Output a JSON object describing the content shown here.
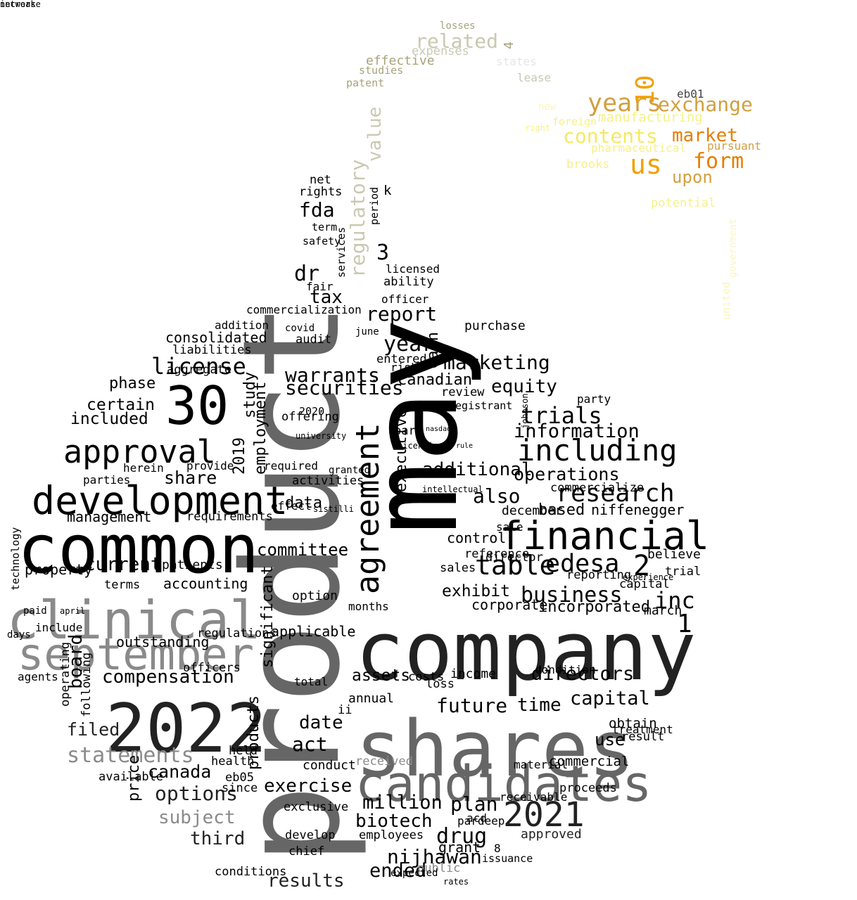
{
  "words": [
    {
      "t": "may",
      "c": "f1"
    },
    {
      "t": "product",
      "c": "f4"
    },
    {
      "t": "company",
      "c": "f2"
    },
    {
      "t": "shares",
      "c": "f4"
    },
    {
      "t": "common",
      "c": "f1"
    },
    {
      "t": "clinical",
      "c": "f5"
    },
    {
      "t": "september",
      "c": "f5"
    },
    {
      "t": "2022",
      "c": "f2"
    },
    {
      "t": "candidates",
      "c": "f4"
    },
    {
      "t": "development",
      "c": "f1"
    },
    {
      "t": "financial",
      "c": "f1"
    },
    {
      "t": "agreement",
      "c": "f1"
    },
    {
      "t": "30",
      "c": "f1"
    },
    {
      "t": "approval",
      "c": "f1"
    },
    {
      "t": "2021",
      "c": "f2"
    },
    {
      "t": "including",
      "c": "f1"
    },
    {
      "t": "years",
      "c": "o3"
    },
    {
      "t": "exchange",
      "c": "o3"
    },
    {
      "t": "us",
      "c": "o2"
    },
    {
      "t": "form",
      "c": "o1"
    },
    {
      "t": "market",
      "c": "o1"
    },
    {
      "t": "contents",
      "c": "y1"
    },
    {
      "t": "10",
      "c": "o2"
    },
    {
      "t": "related",
      "c": "b2"
    },
    {
      "t": "regulatory",
      "c": "b2"
    },
    {
      "t": "value",
      "c": "b2"
    },
    {
      "t": "effective",
      "c": "b1"
    },
    {
      "t": "studies",
      "c": "b1"
    },
    {
      "t": "patent",
      "c": "b1"
    },
    {
      "t": "expenses",
      "c": "b2"
    },
    {
      "t": "losses",
      "c": "b1"
    },
    {
      "t": "states",
      "c": "k1"
    },
    {
      "t": "lease",
      "c": "b2"
    },
    {
      "t": "4",
      "c": "b1"
    },
    {
      "t": "manufacturing",
      "c": "y2"
    },
    {
      "t": "pharmaceutical",
      "c": "y2"
    },
    {
      "t": "foreign",
      "c": "y2"
    },
    {
      "t": "brooks",
      "c": "y2"
    },
    {
      "t": "upon",
      "c": "o3"
    },
    {
      "t": "potential",
      "c": "y2"
    },
    {
      "t": "pursuant",
      "c": "o3"
    },
    {
      "t": "eb01",
      "c": "f3"
    },
    {
      "t": "new",
      "c": "y3"
    },
    {
      "t": "right",
      "c": "y2"
    },
    {
      "t": "united",
      "c": "y3"
    },
    {
      "t": "government",
      "c": "y3"
    },
    {
      "t": "research",
      "c": "f1"
    },
    {
      "t": "table",
      "c": "f1"
    },
    {
      "t": "edesa",
      "c": "f1"
    },
    {
      "t": "business",
      "c": "f1"
    },
    {
      "t": "inc",
      "c": "f1"
    },
    {
      "t": "marketing",
      "c": "f1"
    },
    {
      "t": "license",
      "c": "f1"
    },
    {
      "t": "securities",
      "c": "f1"
    },
    {
      "t": "warrants",
      "c": "f1"
    },
    {
      "t": "year",
      "c": "f1"
    },
    {
      "t": "report",
      "c": "f1"
    },
    {
      "t": "equity",
      "c": "f1"
    },
    {
      "t": "trials",
      "c": "f1"
    },
    {
      "t": "information",
      "c": "f1"
    },
    {
      "t": "operations",
      "c": "f1"
    },
    {
      "t": "additional",
      "c": "f1"
    },
    {
      "t": "also",
      "c": "f1"
    },
    {
      "t": "canadian",
      "c": "f1"
    },
    {
      "t": "committee",
      "c": "f1"
    },
    {
      "t": "current",
      "c": "f1"
    },
    {
      "t": "included",
      "c": "f1"
    },
    {
      "t": "certain",
      "c": "f1"
    },
    {
      "t": "phase",
      "c": "f1"
    },
    {
      "t": "share",
      "c": "f1"
    },
    {
      "t": "tax",
      "c": "f1"
    },
    {
      "t": "dr",
      "c": "f1"
    },
    {
      "t": "fda",
      "c": "f1"
    },
    {
      "t": "3",
      "c": "f1"
    },
    {
      "t": "2",
      "c": "f1"
    },
    {
      "t": "1",
      "c": "f1"
    },
    {
      "t": "compensation",
      "c": "f1"
    },
    {
      "t": "board",
      "c": "f1"
    },
    {
      "t": "filed",
      "c": "f2"
    },
    {
      "t": "statements",
      "c": "f5"
    },
    {
      "t": "canada",
      "c": "f1"
    },
    {
      "t": "options",
      "c": "f2"
    },
    {
      "t": "subject",
      "c": "f5"
    },
    {
      "t": "third",
      "c": "f2"
    },
    {
      "t": "exercise",
      "c": "f1"
    },
    {
      "t": "million",
      "c": "f1"
    },
    {
      "t": "biotech",
      "c": "f1"
    },
    {
      "t": "drug",
      "c": "f1"
    },
    {
      "t": "plan",
      "c": "f1"
    },
    {
      "t": "nijhawan",
      "c": "f1"
    },
    {
      "t": "ended",
      "c": "f1"
    },
    {
      "t": "results",
      "c": "f2"
    },
    {
      "t": "capital",
      "c": "f1"
    },
    {
      "t": "directors",
      "c": "f1"
    },
    {
      "t": "future",
      "c": "f1"
    },
    {
      "t": "time",
      "c": "f1"
    },
    {
      "t": "assets",
      "c": "f1"
    },
    {
      "t": "date",
      "c": "f1"
    },
    {
      "t": "act",
      "c": "f1"
    },
    {
      "t": "use",
      "c": "f1"
    },
    {
      "t": "exhibit",
      "c": "f1"
    },
    {
      "t": "incorporated",
      "c": "f1"
    },
    {
      "t": "corporate",
      "c": "f1"
    },
    {
      "t": "control",
      "c": "f1"
    },
    {
      "t": "based",
      "c": "f1"
    },
    {
      "t": "data",
      "c": "f1"
    },
    {
      "t": "executive",
      "c": "f1"
    },
    {
      "t": "employment",
      "c": "f1"
    },
    {
      "t": "study",
      "c": "f1"
    },
    {
      "t": "2019",
      "c": "f1"
    },
    {
      "t": "significant",
      "c": "f1"
    },
    {
      "t": "products",
      "c": "f1"
    },
    {
      "t": "price",
      "c": "f1"
    },
    {
      "t": "health",
      "c": "f1"
    },
    {
      "t": "cash",
      "c": "f1"
    },
    {
      "t": "consolidated",
      "c": "f1"
    },
    {
      "t": "liabilities",
      "c": "f1"
    },
    {
      "t": "aggregate",
      "c": "f1"
    },
    {
      "t": "management",
      "c": "f1"
    },
    {
      "t": "property",
      "c": "f1"
    },
    {
      "t": "patients",
      "c": "f1"
    },
    {
      "t": "accounting",
      "c": "f1"
    },
    {
      "t": "terms",
      "c": "f1"
    },
    {
      "t": "technology",
      "c": "f1"
    },
    {
      "t": "include",
      "c": "f1"
    },
    {
      "t": "outstanding",
      "c": "f1"
    },
    {
      "t": "regulations",
      "c": "f1"
    },
    {
      "t": "option",
      "c": "f1"
    },
    {
      "t": "applicable",
      "c": "f1"
    },
    {
      "t": "months",
      "c": "f1"
    },
    {
      "t": "employees",
      "c": "f1"
    },
    {
      "t": "develop",
      "c": "f1"
    },
    {
      "t": "grant",
      "c": "f1"
    },
    {
      "t": "approved",
      "c": "f2"
    },
    {
      "t": "sales",
      "c": "f1"
    },
    {
      "t": "commercial",
      "c": "f1"
    },
    {
      "t": "treatment",
      "c": "f1"
    },
    {
      "t": "obtain",
      "c": "f1"
    },
    {
      "t": "result",
      "c": "f1"
    },
    {
      "t": "believe",
      "c": "f1"
    },
    {
      "t": "trial",
      "c": "f1"
    },
    {
      "t": "march",
      "c": "f1"
    },
    {
      "t": "reporting",
      "c": "f1"
    },
    {
      "t": "niffenegger",
      "c": "f1"
    },
    {
      "t": "december",
      "c": "f1"
    },
    {
      "t": "sale",
      "c": "f1"
    },
    {
      "t": "director",
      "c": "f1"
    },
    {
      "t": "reference",
      "c": "f1"
    },
    {
      "t": "purchase",
      "c": "f1"
    },
    {
      "t": "review",
      "c": "f1"
    },
    {
      "t": "registrant",
      "c": "f1"
    },
    {
      "t": "income",
      "c": "f1"
    },
    {
      "t": "costs",
      "c": "f1"
    },
    {
      "t": "loss",
      "c": "f1"
    },
    {
      "t": "annual",
      "c": "f1"
    },
    {
      "t": "total",
      "c": "f1"
    },
    {
      "t": "received",
      "c": "f5"
    },
    {
      "t": "conduct",
      "c": "f1"
    },
    {
      "t": "exclusive",
      "c": "f1"
    },
    {
      "t": "audit",
      "c": "f1"
    },
    {
      "t": "officer",
      "c": "f1"
    },
    {
      "t": "ability",
      "c": "f1"
    },
    {
      "t": "licensed",
      "c": "f1"
    },
    {
      "t": "commercialization",
      "c": "f1"
    },
    {
      "t": "addition",
      "c": "f1"
    },
    {
      "t": "fair",
      "c": "f1"
    },
    {
      "t": "safety",
      "c": "f1"
    },
    {
      "t": "term",
      "c": "f1"
    },
    {
      "t": "rights",
      "c": "f1"
    },
    {
      "t": "net",
      "c": "f1"
    },
    {
      "t": "services",
      "c": "f1"
    },
    {
      "t": "period",
      "c": "f1"
    },
    {
      "t": "k",
      "c": "f1"
    },
    {
      "t": "herein",
      "c": "f1"
    },
    {
      "t": "parties",
      "c": "f1"
    },
    {
      "t": "provide",
      "c": "f1"
    },
    {
      "t": "required",
      "c": "f1"
    },
    {
      "t": "requirements",
      "c": "f1"
    },
    {
      "t": "effect",
      "c": "f1"
    },
    {
      "t": "activities",
      "c": "f1"
    },
    {
      "t": "entered",
      "c": "f1"
    },
    {
      "t": "risk",
      "c": "f1"
    },
    {
      "t": "offering",
      "c": "f1"
    },
    {
      "t": "2020",
      "c": "f1"
    },
    {
      "t": "part",
      "c": "f1"
    },
    {
      "t": "officers",
      "c": "f1"
    },
    {
      "t": "following",
      "c": "f1"
    },
    {
      "t": "operating",
      "c": "f1"
    },
    {
      "t": "commercialize",
      "c": "f1"
    },
    {
      "t": "party",
      "c": "f1"
    },
    {
      "t": "capital",
      "c": "f1"
    },
    {
      "t": "ii",
      "c": "f1"
    },
    {
      "t": "available",
      "c": "f1"
    },
    {
      "t": "eb05",
      "c": "f1"
    },
    {
      "t": "since",
      "c": "f1"
    },
    {
      "t": "held",
      "c": "f1"
    },
    {
      "t": "condition",
      "c": "f1"
    },
    {
      "t": "conditions",
      "c": "f1"
    },
    {
      "t": "public",
      "c": "f5"
    },
    {
      "t": "chief",
      "c": "f1"
    },
    {
      "t": "expected",
      "c": "f1"
    },
    {
      "t": "acd",
      "c": "f1"
    },
    {
      "t": "pardeep",
      "c": "f1"
    },
    {
      "t": "8",
      "c": "f1"
    },
    {
      "t": "issuance",
      "c": "f1"
    },
    {
      "t": "proceeds",
      "c": "f1"
    },
    {
      "t": "receivable",
      "c": "f1"
    },
    {
      "t": "material",
      "c": "f1"
    },
    {
      "t": "rates",
      "c": "f1"
    },
    {
      "t": "agents",
      "c": "f1"
    },
    {
      "t": "days",
      "c": "f1"
    },
    {
      "t": "paid",
      "c": "f1"
    },
    {
      "t": "april",
      "c": "f1"
    },
    {
      "t": "nasdaq",
      "c": "f1"
    },
    {
      "t": "rule",
      "c": "f1"
    },
    {
      "t": "johnson",
      "c": "f1"
    },
    {
      "t": "licensing",
      "c": "f1"
    },
    {
      "t": "university",
      "c": "f1"
    },
    {
      "t": "sistilli",
      "c": "f1"
    },
    {
      "t": "granted",
      "c": "f1"
    },
    {
      "t": "covid",
      "c": "f1"
    },
    {
      "t": "june",
      "c": "f1"
    },
    {
      "t": "experience",
      "c": "f1"
    },
    {
      "t": "intellectual",
      "c": "f1"
    },
    {
      "t": "increase",
      "c": "f1"
    },
    {
      "t": "network",
      "c": "f1"
    }
  ]
}
